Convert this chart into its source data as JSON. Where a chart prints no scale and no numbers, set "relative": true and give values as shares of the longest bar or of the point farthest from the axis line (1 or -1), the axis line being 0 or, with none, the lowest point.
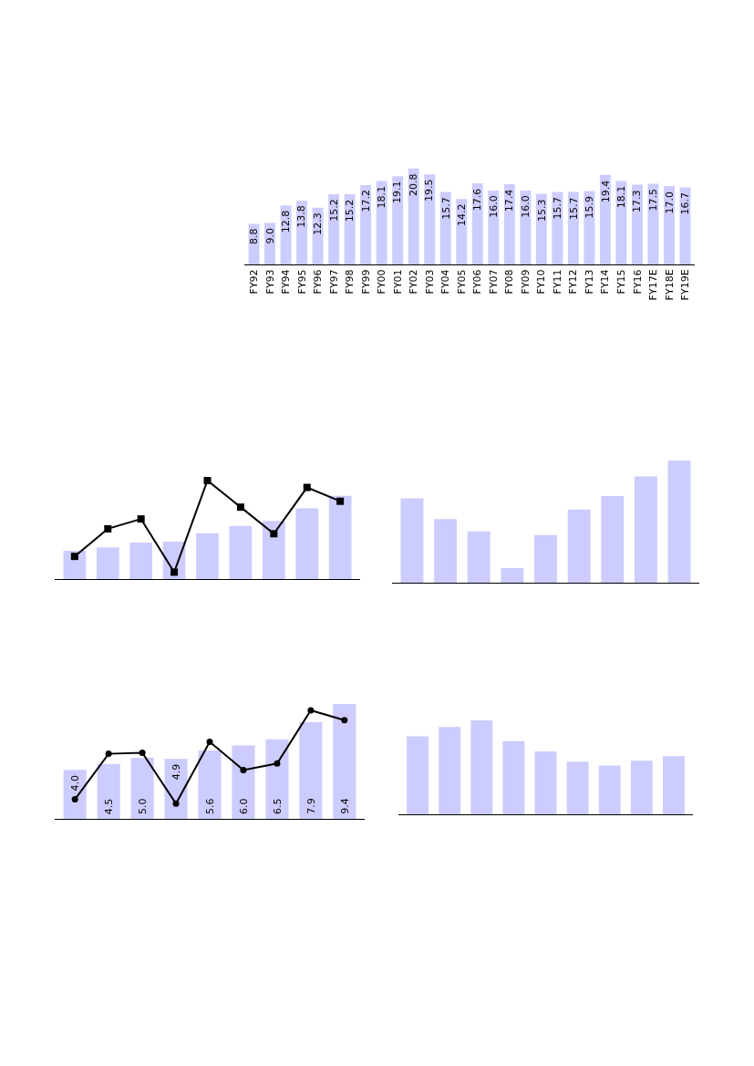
{
  "chart_data": [
    {
      "type": "bar",
      "categories": [
        "FY92",
        "FY93",
        "FY94",
        "FY95",
        "FY96",
        "FY97",
        "FY98",
        "FY99",
        "FY00",
        "FY01",
        "FY02",
        "FY03",
        "FY04",
        "FY05",
        "FY06",
        "FY07",
        "FY08",
        "FY09",
        "FY10",
        "FY11",
        "FY12",
        "FY13",
        "FY14",
        "FY15",
        "FY16",
        "FY17E",
        "FY18E",
        "FY19E"
      ],
      "values": [
        8.8,
        9.0,
        12.8,
        13.8,
        12.3,
        15.2,
        15.2,
        17.2,
        18.1,
        19.1,
        20.8,
        19.5,
        15.7,
        14.2,
        17.6,
        16.0,
        17.4,
        16.0,
        15.3,
        15.7,
        15.7,
        15.9,
        19.4,
        18.1,
        17.3,
        17.5,
        17.0,
        16.7
      ],
      "tick_labels": "x",
      "value_labels": [
        "8.8",
        "9.0",
        "12.8",
        "13.8",
        "12.3",
        "15.2",
        "15.2",
        "17.2",
        "18.1",
        "19.1",
        "20.8",
        "19.5",
        "15.7",
        "14.2",
        "17.6",
        "16.0",
        "17.4",
        "16.0",
        "15.3",
        "15.7",
        "15.7",
        "15.9",
        "19.4",
        "18.1",
        "17.3",
        "17.5",
        "17.0",
        "16.7"
      ],
      "color": "#ccccff"
    },
    {
      "type": "bar",
      "relative": true,
      "categories": [
        null,
        null,
        null,
        null,
        null,
        null,
        null,
        null,
        null
      ],
      "values": [
        0.34,
        0.38,
        0.44,
        0.45,
        0.55,
        0.64,
        0.7,
        0.85,
        1
      ],
      "color": "#ccccff"
    },
    {
      "type": "line",
      "relative": true,
      "categories": [
        null,
        null,
        null,
        null,
        null,
        null,
        null,
        null,
        null
      ],
      "values": [
        0.23,
        0.51,
        0.61,
        0.07,
        1,
        0.73,
        0.46,
        0.93,
        0.79
      ],
      "color": "#000000",
      "marker": "square"
    },
    {
      "type": "bar",
      "relative": true,
      "categories": [
        null,
        null,
        null,
        null,
        null,
        null,
        null,
        null,
        null
      ],
      "values": [
        0.69,
        0.52,
        0.42,
        0.12,
        0.39,
        0.6,
        0.71,
        0.87,
        1
      ],
      "color": "#ccccff"
    },
    {
      "type": "bar",
      "categories": [
        null,
        null,
        null,
        null,
        null,
        null,
        null,
        null,
        null
      ],
      "values": [
        4.0,
        4.5,
        5.0,
        4.9,
        5.6,
        6.0,
        6.5,
        7.9,
        9.4
      ],
      "tick_labels": false,
      "value_labels": [
        "4.0",
        "4.5",
        "5.0",
        "4.9",
        "5.6",
        "6.0",
        "6.5",
        "7.9",
        "9.4"
      ],
      "color": "#ccccff"
    },
    {
      "type": "line",
      "relative": true,
      "categories": [
        null,
        null,
        null,
        null,
        null,
        null,
        null,
        null,
        null
      ],
      "values": [
        0.18,
        0.6,
        0.61,
        0.14,
        0.71,
        0.45,
        0.51,
        1,
        0.91
      ],
      "color": "#000000",
      "marker": "circle"
    },
    {
      "type": "bar",
      "relative": true,
      "categories": [
        null,
        null,
        null,
        null,
        null,
        null,
        null,
        null,
        null
      ],
      "values": [
        0.83,
        0.93,
        1,
        0.78,
        0.67,
        0.56,
        0.52,
        0.57,
        0.62
      ],
      "color": "#ccccff"
    }
  ]
}
